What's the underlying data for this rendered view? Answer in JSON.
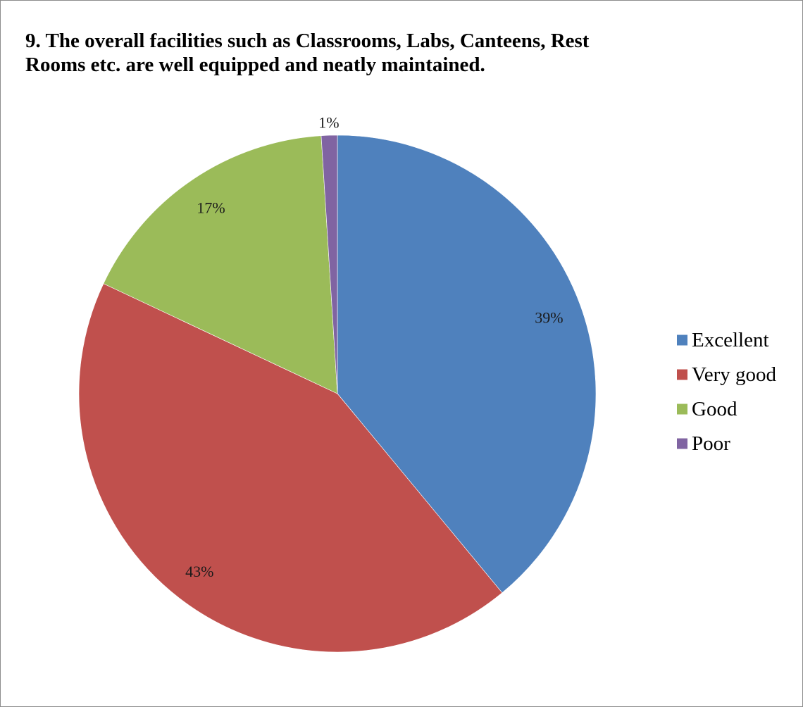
{
  "chart_data": {
    "type": "pie",
    "title": "9. The overall facilities such as Classrooms, Labs, Canteens, Rest\nRooms etc. are well       equipped and neatly maintained.",
    "categories": [
      "Excellent",
      "Very good",
      "Good",
      "Poor"
    ],
    "values": [
      39,
      43,
      17,
      1
    ],
    "data_labels": [
      "39%",
      "43%",
      "17%",
      "1%"
    ],
    "colors": [
      "#4f81bd",
      "#c0504d",
      "#9bbb59",
      "#8064a2"
    ],
    "legend_position": "right"
  }
}
